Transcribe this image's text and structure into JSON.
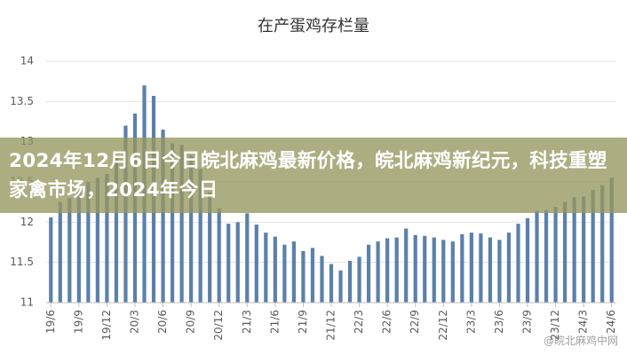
{
  "chart_data": {
    "type": "bar",
    "title": "在产蛋鸡存栏量",
    "categories": [
      "19/6",
      null,
      null,
      "19/9",
      null,
      null,
      "19/12",
      null,
      null,
      "20/3",
      null,
      null,
      "20/6",
      null,
      null,
      "20/9",
      null,
      null,
      "20/12",
      null,
      null,
      "21/3",
      null,
      null,
      "21/6",
      null,
      null,
      "21/9",
      null,
      null,
      "21/12",
      null,
      null,
      "22/3",
      null,
      null,
      "22/6",
      null,
      null,
      "22/9",
      null,
      null,
      "22/12",
      null,
      null,
      "23/3",
      null,
      null,
      "23/6",
      null,
      null,
      "23/9",
      null,
      null,
      "23/12",
      null,
      null,
      "24/3",
      null,
      null,
      "24/6"
    ],
    "values": [
      12.06,
      12.25,
      12.3,
      12.4,
      12.5,
      12.55,
      12.6,
      12.8,
      13.2,
      13.35,
      13.7,
      13.57,
      13.15,
      12.98,
      12.96,
      12.83,
      12.66,
      12.37,
      12.17,
      11.98,
      12.0,
      12.11,
      11.97,
      11.87,
      11.82,
      11.72,
      11.76,
      11.64,
      11.68,
      11.58,
      11.48,
      11.4,
      11.52,
      11.57,
      11.72,
      11.76,
      11.8,
      11.81,
      11.92,
      11.84,
      11.83,
      11.81,
      11.78,
      11.76,
      11.85,
      11.87,
      11.86,
      11.81,
      11.78,
      11.87,
      11.98,
      12.05,
      12.14,
      12.15,
      12.19,
      12.25,
      12.31,
      12.32,
      12.4,
      12.46,
      12.55
    ],
    "color": "#5b80ab",
    "ylim": [
      11,
      14
    ],
    "yticks": [
      11,
      11.5,
      12,
      12.5,
      13,
      13.5,
      14
    ],
    "grid": true
  },
  "banner": {
    "text": "2024年12月6日今日皖北麻鸡最新价格，皖北麻鸡新纪元，科技重塑家禽市场，2024年今日"
  },
  "watermark": "@皖北麻鸡中网"
}
